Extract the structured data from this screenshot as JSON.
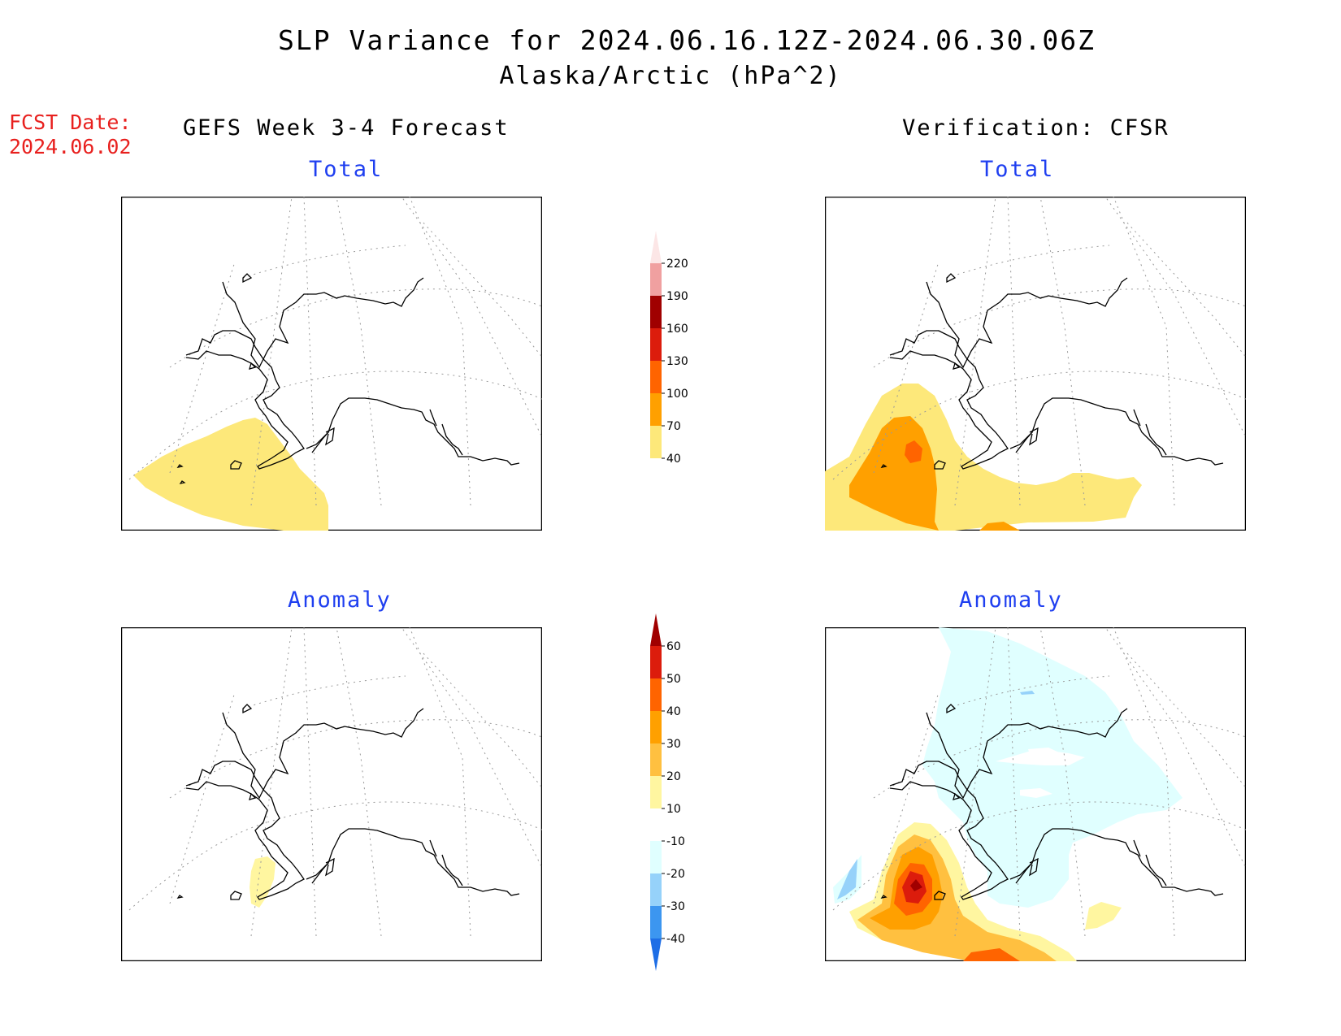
{
  "title": {
    "line1": "SLP Variance for 2024.06.16.12Z-2024.06.30.06Z",
    "line2": "Alaska/Arctic (hPa^2)"
  },
  "fcst": {
    "label": "FCST Date:",
    "date": "2024.06.02"
  },
  "columns": {
    "left": "GEFS Week 3-4 Forecast",
    "right": "Verification: CFSR"
  },
  "panels": {
    "top_left_title": "Total",
    "top_right_title": "Total",
    "bottom_left_title": "Anomaly",
    "bottom_right_title": "Anomaly"
  },
  "colorbar_total": {
    "labels": [
      "220",
      "190",
      "160",
      "130",
      "100",
      "70",
      "40"
    ],
    "colors": [
      "#fce6e6",
      "#f0a0a0",
      "#a00000",
      "#dc1c0c",
      "#ff6400",
      "#ffa000",
      "#fde87a"
    ]
  },
  "colorbar_anomaly": {
    "labels": [
      "60",
      "50",
      "40",
      "30",
      "20",
      "10",
      "-10",
      "-20",
      "-30",
      "-40"
    ],
    "colors": [
      "#a00000",
      "#dc1c0c",
      "#ff6400",
      "#ffa000",
      "#ffc040",
      "#fff6a0",
      "#ffffff",
      "#e0ffff",
      "#96d2fa",
      "#3c96f0",
      "#1e6ee6"
    ]
  },
  "colors": {
    "coast": "#000000",
    "grid": "#999999",
    "fcst_text": "#e8201e",
    "subtitle_text": "#1f3ff0"
  }
}
